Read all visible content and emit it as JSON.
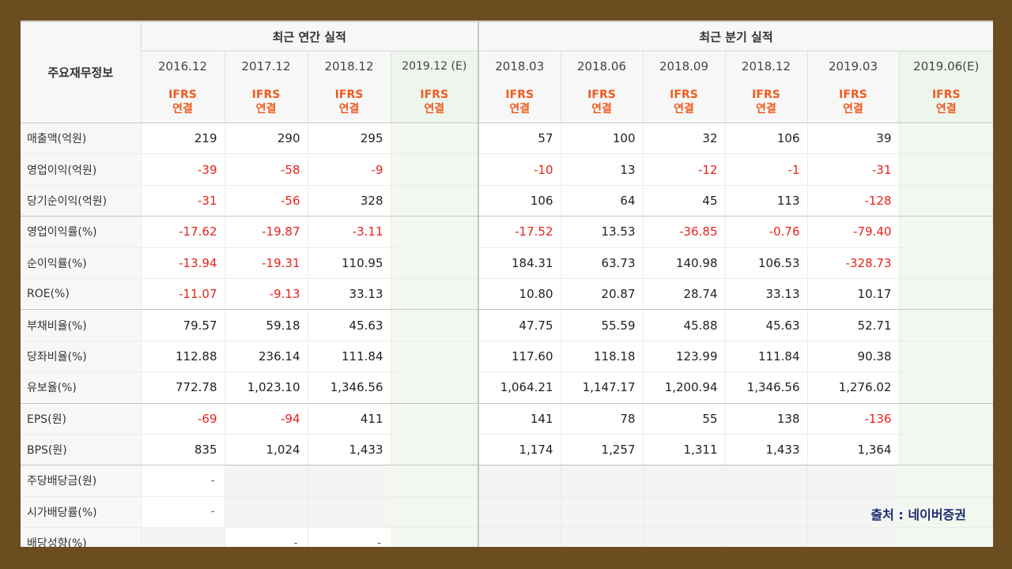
{
  "header": {
    "title": "주요재무정보",
    "annual_group": "최근 연간 실적",
    "quarter_group": "최근 분기 실적",
    "periods": [
      "2016.12",
      "2017.12",
      "2018.12",
      "2019.12 (E)",
      "2018.03",
      "2018.06",
      "2018.09",
      "2018.12",
      "2019.03",
      "2019.06(E)"
    ],
    "ifrs_top": "IFRS",
    "ifrs_bottom": "연결"
  },
  "rows": [
    {
      "label": "매출액(억원)",
      "values": [
        "219",
        "290",
        "295",
        "",
        "57",
        "100",
        "32",
        "106",
        "39",
        ""
      ]
    },
    {
      "label": "영업이익(억원)",
      "values": [
        "-39",
        "-58",
        "-9",
        "",
        "-10",
        "13",
        "-12",
        "-1",
        "-31",
        ""
      ]
    },
    {
      "label": "당기순이익(억원)",
      "values": [
        "-31",
        "-56",
        "328",
        "",
        "106",
        "64",
        "45",
        "113",
        "-128",
        ""
      ]
    },
    {
      "label": "영업이익률(%)",
      "values": [
        "-17.62",
        "-19.87",
        "-3.11",
        "",
        "-17.52",
        "13.53",
        "-36.85",
        "-0.76",
        "-79.40",
        ""
      ]
    },
    {
      "label": "순이익률(%)",
      "values": [
        "-13.94",
        "-19.31",
        "110.95",
        "",
        "184.31",
        "63.73",
        "140.98",
        "106.53",
        "-328.73",
        ""
      ]
    },
    {
      "label": "ROE(%)",
      "values": [
        "-11.07",
        "-9.13",
        "33.13",
        "",
        "10.80",
        "20.87",
        "28.74",
        "33.13",
        "10.17",
        ""
      ]
    },
    {
      "label": "부채비율(%)",
      "values": [
        "79.57",
        "59.18",
        "45.63",
        "",
        "47.75",
        "55.59",
        "45.88",
        "45.63",
        "52.71",
        ""
      ]
    },
    {
      "label": "당좌비율(%)",
      "values": [
        "112.88",
        "236.14",
        "111.84",
        "",
        "117.60",
        "118.18",
        "123.99",
        "111.84",
        "90.38",
        ""
      ]
    },
    {
      "label": "유보율(%)",
      "values": [
        "772.78",
        "1,023.10",
        "1,346.56",
        "",
        "1,064.21",
        "1,147.17",
        "1,200.94",
        "1,346.56",
        "1,276.02",
        ""
      ]
    },
    {
      "label": "EPS(원)",
      "values": [
        "-69",
        "-94",
        "411",
        "",
        "141",
        "78",
        "55",
        "138",
        "-136",
        ""
      ]
    },
    {
      "label": "BPS(원)",
      "values": [
        "835",
        "1,024",
        "1,433",
        "",
        "1,174",
        "1,257",
        "1,311",
        "1,433",
        "1,364",
        ""
      ]
    },
    {
      "label": "주당배당금(원)",
      "values": [
        "-",
        "",
        "",
        "",
        "",
        "",
        "",
        "",
        "",
        ""
      ]
    },
    {
      "label": "시가배당률(%)",
      "values": [
        "-",
        "",
        "",
        "",
        "",
        "",
        "",
        "",
        "",
        ""
      ]
    },
    {
      "label": "배당성향(%)",
      "values": [
        "",
        "-",
        "-",
        "",
        "",
        "",
        "",
        "",
        "",
        ""
      ]
    }
  ],
  "source_note": "출처 : 네이버증권"
}
